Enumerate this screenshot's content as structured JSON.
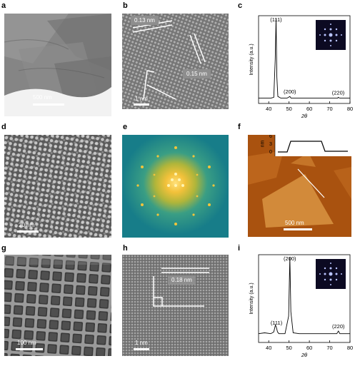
{
  "panels": [
    {
      "letter": "a",
      "scale_label": "500 nm"
    },
    {
      "letter": "b",
      "scale_label": "1 nm",
      "spacing_labels": [
        "0.13 nm",
        "0.15 nm"
      ]
    },
    {
      "letter": "c"
    },
    {
      "letter": "d",
      "scale_label": "20 nm"
    },
    {
      "letter": "e"
    },
    {
      "letter": "f",
      "scale_label": "500 nm",
      "profile_ticks": [
        "6",
        "3",
        "0"
      ],
      "profile_unit": "nm"
    },
    {
      "letter": "g",
      "scale_label": "100 nm"
    },
    {
      "letter": "h",
      "scale_label": "1 nm",
      "spacing_labels": [
        "0.18 nm"
      ]
    },
    {
      "letter": "i"
    }
  ],
  "chart_data": [
    {
      "type": "line",
      "panel": "c",
      "xlabel": "2θ",
      "ylabel": "Intensity (a.u.)",
      "xlim": [
        35,
        80
      ],
      "xticks": [
        40,
        50,
        60,
        70,
        80
      ],
      "x": [
        35,
        38,
        41,
        42.5,
        43.2,
        43.6,
        44.0,
        44.5,
        46,
        49,
        50.4,
        51,
        55,
        60,
        65,
        70,
        74,
        74.2,
        75,
        78,
        80
      ],
      "y": [
        0.06,
        0.06,
        0.06,
        0.07,
        0.5,
        0.97,
        0.3,
        0.08,
        0.06,
        0.06,
        0.08,
        0.06,
        0.06,
        0.06,
        0.06,
        0.06,
        0.06,
        0.07,
        0.06,
        0.06,
        0.06
      ],
      "peak_labels": [
        {
          "x": 43.6,
          "text": "(111)"
        },
        {
          "x": 50.4,
          "text": "(200)"
        },
        {
          "x": 74.2,
          "text": "(220)"
        }
      ]
    },
    {
      "type": "line",
      "panel": "i",
      "xlabel": "2θ",
      "ylabel": "Intensity (a.u.)",
      "xlim": [
        35,
        80
      ],
      "xticks": [
        40,
        50,
        60,
        70,
        80
      ],
      "x": [
        35,
        38,
        41,
        42.5,
        43.3,
        43.8,
        44.3,
        45,
        48,
        49.8,
        50.4,
        50.9,
        52,
        55,
        60,
        65,
        70,
        73.5,
        74.3,
        75,
        78,
        80
      ],
      "y": [
        0.1,
        0.11,
        0.1,
        0.12,
        0.2,
        0.17,
        0.12,
        0.1,
        0.1,
        0.3,
        0.97,
        0.35,
        0.11,
        0.1,
        0.1,
        0.1,
        0.1,
        0.1,
        0.13,
        0.1,
        0.1,
        0.1
      ],
      "peak_labels": [
        {
          "x": 43.8,
          "text": "(111)"
        },
        {
          "x": 50.4,
          "text": "(200)"
        },
        {
          "x": 74.3,
          "text": "(220)"
        }
      ]
    }
  ]
}
